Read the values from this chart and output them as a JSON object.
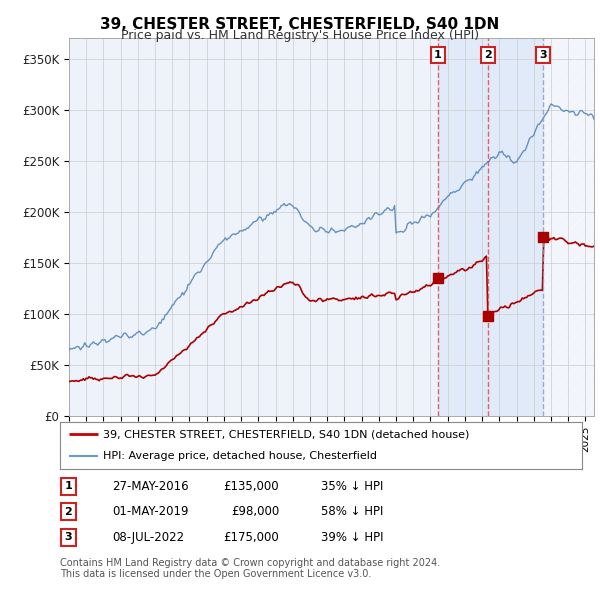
{
  "title": "39, CHESTER STREET, CHESTERFIELD, S40 1DN",
  "subtitle": "Price paid vs. HM Land Registry's House Price Index (HPI)",
  "ylabel_ticks": [
    "£0",
    "£50K",
    "£100K",
    "£150K",
    "£200K",
    "£250K",
    "£300K",
    "£350K"
  ],
  "ytick_values": [
    0,
    50000,
    100000,
    150000,
    200000,
    250000,
    300000,
    350000
  ],
  "ylim": [
    0,
    370000
  ],
  "xlim_start": 1995.0,
  "xlim_end": 2025.5,
  "transaction_dates": [
    2016.41,
    2019.33,
    2022.52
  ],
  "transaction_prices": [
    135000,
    98000,
    175000
  ],
  "transaction_labels": [
    "1",
    "2",
    "3"
  ],
  "transaction_line_styles": [
    "red_dashed",
    "red_dashed",
    "gray_dashed"
  ],
  "transaction_table": [
    {
      "label": "1",
      "date": "27-MAY-2016",
      "price": "£135,000",
      "hpi": "35% ↓ HPI"
    },
    {
      "label": "2",
      "date": "01-MAY-2019",
      "price": "£98,000",
      "hpi": "58% ↓ HPI"
    },
    {
      "label": "3",
      "date": "08-JUL-2022",
      "price": "£175,000",
      "hpi": "39% ↓ HPI"
    }
  ],
  "legend_entries": [
    {
      "label": "39, CHESTER STREET, CHESTERFIELD, S40 1DN (detached house)",
      "color": "#cc0000",
      "lw": 2
    },
    {
      "label": "HPI: Average price, detached house, Chesterfield",
      "color": "#6699cc",
      "lw": 1.5
    }
  ],
  "footer": "Contains HM Land Registry data © Crown copyright and database right 2024.\nThis data is licensed under the Open Government Licence v3.0.",
  "background_color": "#ffffff",
  "plot_bg_color": "#eef2fb",
  "grid_color": "#cccccc",
  "title_fontsize": 11,
  "subtitle_fontsize": 9,
  "hpi_color": "#5588bb",
  "price_color": "#aa0000",
  "shade_color": "#dce8f8",
  "hatch_color": "#cccccc"
}
